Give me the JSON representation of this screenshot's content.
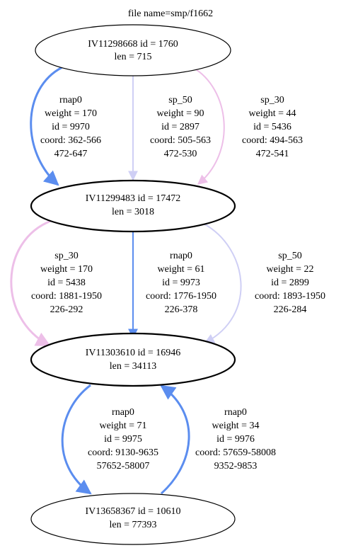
{
  "graph": {
    "title": "file name=smp/f1662",
    "nodes": [
      {
        "id": "n1",
        "line1": "IV11298668 id = 1760",
        "line2": "len = 715"
      },
      {
        "id": "n2",
        "line1": "IV11299483 id = 17472",
        "line2": "len = 3018"
      },
      {
        "id": "n3",
        "line1": "IV11303610 id = 16946",
        "line2": "len = 34113"
      },
      {
        "id": "n4",
        "line1": "IV13658367 id = 10610",
        "line2": "len = 77393"
      }
    ],
    "edges": [
      {
        "id": "e1",
        "from": "n1",
        "to": "n2",
        "color": "#5b8def",
        "label": [
          "rnap0",
          "weight = 170",
          "id = 9970",
          "coord: 362-566",
          "472-647"
        ]
      },
      {
        "id": "e2",
        "from": "n1",
        "to": "n2",
        "color": "#cfcff5",
        "label": [
          "sp_50",
          "weight = 90",
          "id = 2897",
          "coord: 505-563",
          "472-530"
        ]
      },
      {
        "id": "e3",
        "from": "n1",
        "to": "n2",
        "color": "#edbfe8",
        "label": [
          "sp_30",
          "weight = 44",
          "id = 5436",
          "coord: 494-563",
          "472-541"
        ]
      },
      {
        "id": "e4",
        "from": "n2",
        "to": "n3",
        "color": "#edbfe8",
        "label": [
          "sp_30",
          "weight = 170",
          "id = 5438",
          "coord: 1881-1950",
          "226-292"
        ]
      },
      {
        "id": "e5",
        "from": "n2",
        "to": "n3",
        "color": "#5b8def",
        "label": [
          "rnap0",
          "weight = 61",
          "id = 9973",
          "coord: 1776-1950",
          "226-378"
        ]
      },
      {
        "id": "e6",
        "from": "n2",
        "to": "n3",
        "color": "#cfcff5",
        "label": [
          "sp_50",
          "weight = 22",
          "id = 2899",
          "coord: 1893-1950",
          "226-284"
        ]
      },
      {
        "id": "e7",
        "from": "n3",
        "to": "n4",
        "color": "#5b8def",
        "label": [
          "rnap0",
          "weight = 71",
          "id = 9975",
          "coord: 9130-9635",
          "57652-58007"
        ]
      },
      {
        "id": "e8",
        "from": "n4",
        "to": "n3",
        "color": "#5b8def",
        "label": [
          "rnap0",
          "weight = 34",
          "id = 9976",
          "coord: 57659-58008",
          "9352-9853"
        ]
      }
    ]
  }
}
